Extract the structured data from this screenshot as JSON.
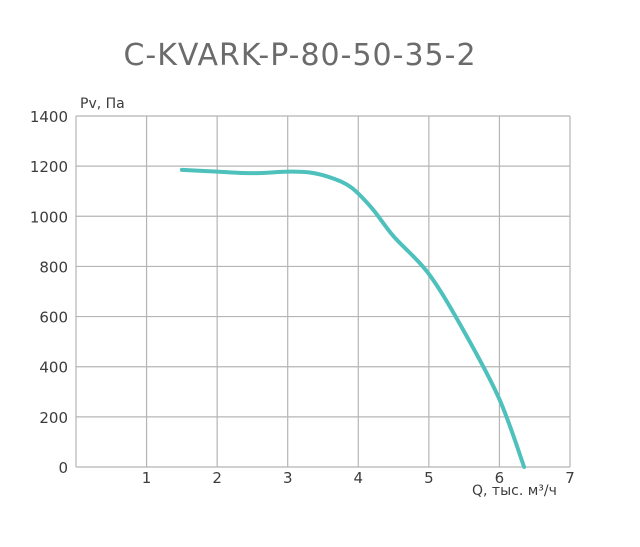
{
  "chart_data": {
    "type": "line",
    "title": "C-KVARK-P-80-50-35-2",
    "ylabel": "Pv, Па",
    "xlabel": "Q, тыс. м³/ч",
    "xlim": [
      0,
      7
    ],
    "ylim": [
      0,
      1400
    ],
    "x_ticks": [
      "1",
      "2",
      "3",
      "4",
      "5",
      "6",
      "7"
    ],
    "y_ticks": [
      "0",
      "200",
      "400",
      "600",
      "800",
      "1000",
      "1200",
      "1400"
    ],
    "grid": true,
    "series": [
      {
        "color": "#4ec1bd",
        "x": [
          1.5,
          2.0,
          2.5,
          3.0,
          3.3,
          3.6,
          3.9,
          4.2,
          4.5,
          5.0,
          5.5,
          6.0,
          6.35
        ],
        "y": [
          1185,
          1178,
          1172,
          1178,
          1175,
          1155,
          1115,
          1030,
          920,
          770,
          540,
          270,
          0
        ]
      }
    ]
  }
}
